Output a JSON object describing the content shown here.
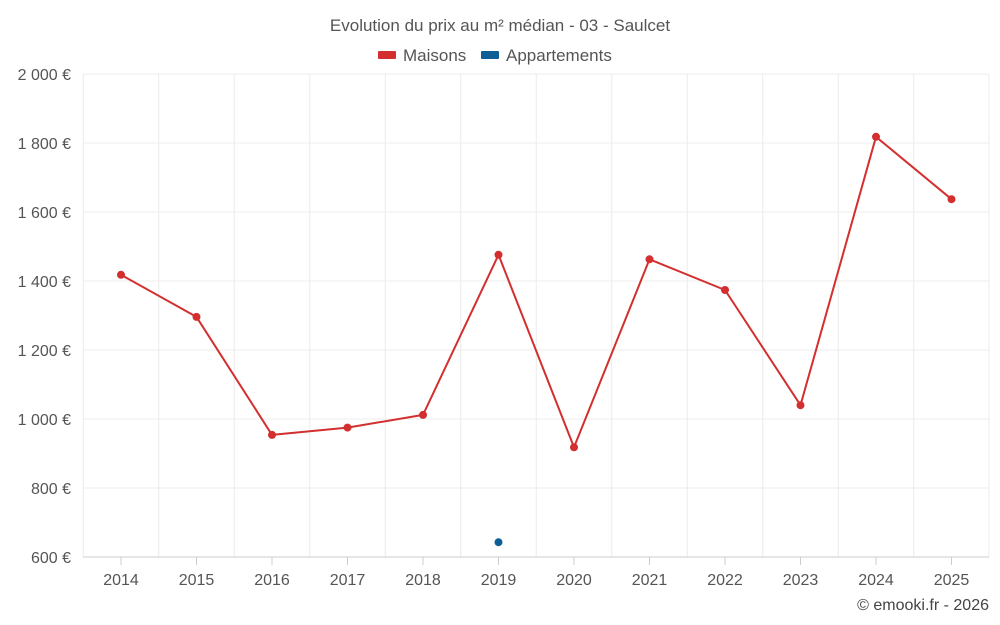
{
  "chart_data": {
    "type": "line",
    "title": "Evolution du prix au m² médian - 03 - Saulcet",
    "categories": [
      "2014",
      "2015",
      "2016",
      "2017",
      "2018",
      "2019",
      "2020",
      "2021",
      "2022",
      "2023",
      "2024",
      "2025"
    ],
    "series": [
      {
        "name": "Maisons",
        "color": "#d32f2f",
        "values": [
          1418,
          1296,
          954,
          975,
          1012,
          1476,
          918,
          1463,
          1374,
          1040,
          1818,
          1637
        ]
      },
      {
        "name": "Appartements",
        "color": "#0d5f96",
        "values": [
          null,
          null,
          null,
          null,
          null,
          643,
          null,
          null,
          null,
          null,
          null,
          null
        ]
      }
    ],
    "ylim": [
      600,
      2000
    ],
    "yticks": [
      600,
      800,
      1000,
      1200,
      1400,
      1600,
      1800,
      2000
    ],
    "ytick_labels": [
      "600 €",
      "800 €",
      "1 000 €",
      "1 200 €",
      "1 400 €",
      "1 600 €",
      "1 800 €",
      "2 000 €"
    ],
    "xlabel": "",
    "ylabel": "",
    "legend_position": "top-center",
    "grid": true
  },
  "credit": "© emooki.fr - 2026"
}
